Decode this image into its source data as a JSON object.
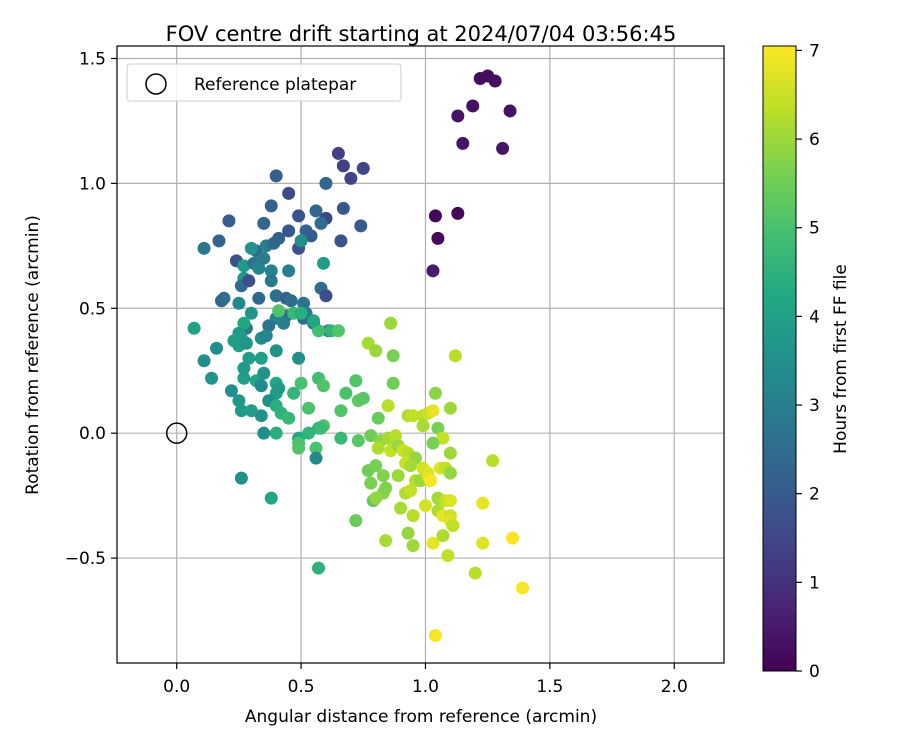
{
  "chart_data": {
    "type": "scatter",
    "title": "FOV centre drift starting at 2024/07/04 03:56:45",
    "xlabel": "Angular distance from reference (arcmin)",
    "ylabel": "Rotation from reference (arcmin)",
    "xlim": [
      -0.24,
      2.2
    ],
    "ylim": [
      -0.92,
      1.55
    ],
    "xticks": [
      0.0,
      0.5,
      1.0,
      1.5,
      2.0
    ],
    "xtick_labels": [
      "0.0",
      "0.5",
      "1.0",
      "1.5",
      "2.0"
    ],
    "yticks": [
      -0.5,
      0.0,
      0.5,
      1.0,
      1.5
    ],
    "ytick_labels": [
      "−0.5",
      "0.0",
      "0.5",
      "1.0",
      "1.5"
    ],
    "grid": true,
    "legend": {
      "location": "upper-left",
      "entries": [
        "Reference platepar"
      ]
    },
    "reference_point": {
      "x": 0.0,
      "y": 0.0
    },
    "colorbar": {
      "label": "Hours from first FF file",
      "range": [
        0,
        7.05
      ],
      "ticks": [
        0,
        1,
        2,
        3,
        4,
        5,
        6,
        7
      ],
      "tick_labels": [
        "0",
        "1",
        "2",
        "3",
        "4",
        "5",
        "6",
        "7"
      ],
      "colormap": "viridis"
    },
    "points": [
      {
        "x": 1.22,
        "y": 1.42,
        "h": 0.2
      },
      {
        "x": 1.25,
        "y": 1.43,
        "h": 0.25
      },
      {
        "x": 1.28,
        "y": 1.41,
        "h": 0.3
      },
      {
        "x": 1.19,
        "y": 1.31,
        "h": 0.3
      },
      {
        "x": 1.13,
        "y": 1.27,
        "h": 0.35
      },
      {
        "x": 1.34,
        "y": 1.29,
        "h": 0.35
      },
      {
        "x": 1.15,
        "y": 1.16,
        "h": 0.4
      },
      {
        "x": 1.31,
        "y": 1.14,
        "h": 0.4
      },
      {
        "x": 1.04,
        "y": 0.87,
        "h": 0.1
      },
      {
        "x": 1.13,
        "y": 0.88,
        "h": 0.1
      },
      {
        "x": 1.05,
        "y": 0.78,
        "h": 0.15
      },
      {
        "x": 1.03,
        "y": 0.65,
        "h": 0.5
      },
      {
        "x": 0.65,
        "y": 1.12,
        "h": 1.3
      },
      {
        "x": 0.67,
        "y": 1.07,
        "h": 1.35
      },
      {
        "x": 0.7,
        "y": 1.02,
        "h": 1.4
      },
      {
        "x": 0.75,
        "y": 1.06,
        "h": 1.45
      },
      {
        "x": 0.6,
        "y": 1.0,
        "h": 2.3
      },
      {
        "x": 0.4,
        "y": 1.03,
        "h": 2.1
      },
      {
        "x": 0.45,
        "y": 0.96,
        "h": 1.6
      },
      {
        "x": 0.38,
        "y": 0.91,
        "h": 2.2
      },
      {
        "x": 0.49,
        "y": 0.87,
        "h": 1.8
      },
      {
        "x": 0.56,
        "y": 0.89,
        "h": 2.4
      },
      {
        "x": 0.6,
        "y": 0.86,
        "h": 1.5
      },
      {
        "x": 0.67,
        "y": 0.9,
        "h": 1.9
      },
      {
        "x": 0.74,
        "y": 0.83,
        "h": 2.0
      },
      {
        "x": 0.66,
        "y": 0.77,
        "h": 1.8
      },
      {
        "x": 0.58,
        "y": 0.84,
        "h": 2.5
      },
      {
        "x": 0.21,
        "y": 0.85,
        "h": 2.1
      },
      {
        "x": 0.17,
        "y": 0.77,
        "h": 2.2
      },
      {
        "x": 0.11,
        "y": 0.74,
        "h": 2.8
      },
      {
        "x": 0.24,
        "y": 0.69,
        "h": 1.8
      },
      {
        "x": 0.35,
        "y": 0.84,
        "h": 2.3
      },
      {
        "x": 0.32,
        "y": 0.73,
        "h": 2.6
      },
      {
        "x": 0.36,
        "y": 0.75,
        "h": 3.0
      },
      {
        "x": 0.39,
        "y": 0.76,
        "h": 2.4
      },
      {
        "x": 0.41,
        "y": 0.78,
        "h": 2.2
      },
      {
        "x": 0.45,
        "y": 0.81,
        "h": 1.9
      },
      {
        "x": 0.52,
        "y": 0.81,
        "h": 2.2
      },
      {
        "x": 0.54,
        "y": 0.79,
        "h": 2.0
      },
      {
        "x": 0.49,
        "y": 0.74,
        "h": 1.7
      },
      {
        "x": 0.5,
        "y": 0.77,
        "h": 3.5
      },
      {
        "x": 0.3,
        "y": 0.74,
        "h": 3.6
      },
      {
        "x": 0.27,
        "y": 0.67,
        "h": 3.8
      },
      {
        "x": 0.27,
        "y": 0.62,
        "h": 3.7
      },
      {
        "x": 0.26,
        "y": 0.59,
        "h": 2.5
      },
      {
        "x": 0.29,
        "y": 0.61,
        "h": 1.7
      },
      {
        "x": 0.31,
        "y": 0.68,
        "h": 2.7
      },
      {
        "x": 0.33,
        "y": 0.66,
        "h": 3.2
      },
      {
        "x": 0.35,
        "y": 0.7,
        "h": 2.9
      },
      {
        "x": 0.38,
        "y": 0.65,
        "h": 3.1
      },
      {
        "x": 0.45,
        "y": 0.65,
        "h": 3.0
      },
      {
        "x": 0.38,
        "y": 0.61,
        "h": 2.8
      },
      {
        "x": 0.33,
        "y": 0.54,
        "h": 2.4
      },
      {
        "x": 0.18,
        "y": 0.53,
        "h": 2.3
      },
      {
        "x": 0.19,
        "y": 0.54,
        "h": 2.5
      },
      {
        "x": 0.25,
        "y": 0.52,
        "h": 3.3
      },
      {
        "x": 0.4,
        "y": 0.55,
        "h": 2.6
      },
      {
        "x": 0.44,
        "y": 0.54,
        "h": 2.2
      },
      {
        "x": 0.46,
        "y": 0.53,
        "h": 2.6
      },
      {
        "x": 0.51,
        "y": 0.52,
        "h": 2.7
      },
      {
        "x": 0.52,
        "y": 0.48,
        "h": 2.9
      },
      {
        "x": 0.58,
        "y": 0.58,
        "h": 2.5
      },
      {
        "x": 0.6,
        "y": 0.55,
        "h": 1.7
      },
      {
        "x": 0.59,
        "y": 0.68,
        "h": 3.9
      },
      {
        "x": 0.51,
        "y": 0.46,
        "h": 2.6
      },
      {
        "x": 0.55,
        "y": 0.44,
        "h": 2.8
      },
      {
        "x": 0.44,
        "y": 0.47,
        "h": 2.5
      },
      {
        "x": 0.43,
        "y": 0.44,
        "h": 3.0
      },
      {
        "x": 0.4,
        "y": 0.46,
        "h": 3.2
      },
      {
        "x": 0.37,
        "y": 0.43,
        "h": 2.7
      },
      {
        "x": 0.28,
        "y": 0.42,
        "h": 2.8
      },
      {
        "x": 0.3,
        "y": 0.48,
        "h": 3.6
      },
      {
        "x": 0.34,
        "y": 0.38,
        "h": 3.4
      },
      {
        "x": 0.36,
        "y": 0.39,
        "h": 3.2
      },
      {
        "x": 0.4,
        "y": 0.33,
        "h": 3.6
      },
      {
        "x": 0.49,
        "y": 0.3,
        "h": 3.5
      },
      {
        "x": 0.61,
        "y": 0.41,
        "h": 2.8
      },
      {
        "x": 0.62,
        "y": 0.41,
        "h": 4.6
      },
      {
        "x": 0.65,
        "y": 0.41,
        "h": 5.1
      },
      {
        "x": 0.57,
        "y": 0.41,
        "h": 4.9
      },
      {
        "x": 0.41,
        "y": 0.49,
        "h": 5.1
      },
      {
        "x": 0.47,
        "y": 0.48,
        "h": 4.7
      },
      {
        "x": 0.5,
        "y": 0.48,
        "h": 4.4
      },
      {
        "x": 0.55,
        "y": 0.45,
        "h": 4.2
      },
      {
        "x": 0.07,
        "y": 0.42,
        "h": 4.0
      },
      {
        "x": 0.27,
        "y": 0.44,
        "h": 4.2
      },
      {
        "x": 0.26,
        "y": 0.38,
        "h": 4.1
      },
      {
        "x": 0.25,
        "y": 0.4,
        "h": 3.8
      },
      {
        "x": 0.23,
        "y": 0.37,
        "h": 4.0
      },
      {
        "x": 0.25,
        "y": 0.35,
        "h": 3.9
      },
      {
        "x": 0.28,
        "y": 0.36,
        "h": 3.7
      },
      {
        "x": 0.16,
        "y": 0.34,
        "h": 3.5
      },
      {
        "x": 0.11,
        "y": 0.29,
        "h": 3.4
      },
      {
        "x": 0.29,
        "y": 0.3,
        "h": 3.9
      },
      {
        "x": 0.34,
        "y": 0.3,
        "h": 4.0
      },
      {
        "x": 0.14,
        "y": 0.22,
        "h": 3.6
      },
      {
        "x": 0.27,
        "y": 0.26,
        "h": 3.8
      },
      {
        "x": 0.27,
        "y": 0.22,
        "h": 3.9
      },
      {
        "x": 0.32,
        "y": 0.21,
        "h": 4.1
      },
      {
        "x": 0.35,
        "y": 0.24,
        "h": 3.6
      },
      {
        "x": 0.34,
        "y": 0.19,
        "h": 3.3
      },
      {
        "x": 0.22,
        "y": 0.17,
        "h": 3.5
      },
      {
        "x": 0.4,
        "y": 0.2,
        "h": 4.2
      },
      {
        "x": 0.4,
        "y": 0.16,
        "h": 4.0
      },
      {
        "x": 0.41,
        "y": 0.18,
        "h": 3.8
      },
      {
        "x": 0.47,
        "y": 0.16,
        "h": 4.6
      },
      {
        "x": 0.5,
        "y": 0.2,
        "h": 5.0
      },
      {
        "x": 0.57,
        "y": 0.22,
        "h": 4.9
      },
      {
        "x": 0.59,
        "y": 0.19,
        "h": 5.1
      },
      {
        "x": 0.25,
        "y": 0.13,
        "h": 3.7
      },
      {
        "x": 0.37,
        "y": 0.13,
        "h": 3.5
      },
      {
        "x": 0.4,
        "y": 0.11,
        "h": 4.4
      },
      {
        "x": 0.42,
        "y": 0.08,
        "h": 4.5
      },
      {
        "x": 0.45,
        "y": 0.06,
        "h": 4.7
      },
      {
        "x": 0.53,
        "y": 0.1,
        "h": 5.0
      },
      {
        "x": 0.26,
        "y": 0.09,
        "h": 3.8
      },
      {
        "x": 0.3,
        "y": 0.09,
        "h": 3.9
      },
      {
        "x": 0.34,
        "y": 0.07,
        "h": 3.6
      },
      {
        "x": 0.49,
        "y": -0.02,
        "h": 4.2
      },
      {
        "x": 0.53,
        "y": 0.0,
        "h": 4.6
      },
      {
        "x": 0.4,
        "y": 0.0,
        "h": 4.4
      },
      {
        "x": 0.35,
        "y": 0.0,
        "h": 3.5
      },
      {
        "x": 0.49,
        "y": -0.04,
        "h": 5.0
      },
      {
        "x": 0.49,
        "y": -0.06,
        "h": 5.1
      },
      {
        "x": 0.56,
        "y": -0.06,
        "h": 5.0
      },
      {
        "x": 0.56,
        "y": -0.1,
        "h": 3.3
      },
      {
        "x": 0.57,
        "y": 0.02,
        "h": 4.6
      },
      {
        "x": 0.59,
        "y": 0.03,
        "h": 5.1
      },
      {
        "x": 0.58,
        "y": 0.02,
        "h": 4.8
      },
      {
        "x": 0.66,
        "y": -0.02,
        "h": 4.7
      },
      {
        "x": 0.26,
        "y": -0.18,
        "h": 3.5
      },
      {
        "x": 0.38,
        "y": -0.26,
        "h": 4.1
      },
      {
        "x": 0.57,
        "y": -0.54,
        "h": 4.5
      },
      {
        "x": 0.66,
        "y": 0.09,
        "h": 5.1
      },
      {
        "x": 0.68,
        "y": 0.16,
        "h": 5.0
      },
      {
        "x": 0.72,
        "y": 0.21,
        "h": 5.1
      },
      {
        "x": 0.73,
        "y": 0.13,
        "h": 5.3
      },
      {
        "x": 0.75,
        "y": 0.14,
        "h": 5.2
      },
      {
        "x": 0.77,
        "y": 0.36,
        "h": 6.1
      },
      {
        "x": 0.8,
        "y": 0.33,
        "h": 6.0
      },
      {
        "x": 0.86,
        "y": 0.44,
        "h": 6.0
      },
      {
        "x": 0.87,
        "y": 0.31,
        "h": 5.6
      },
      {
        "x": 0.87,
        "y": 0.2,
        "h": 5.5
      },
      {
        "x": 0.81,
        "y": 0.06,
        "h": 5.4
      },
      {
        "x": 0.85,
        "y": 0.11,
        "h": 6.3
      },
      {
        "x": 0.93,
        "y": 0.07,
        "h": 6.2
      },
      {
        "x": 0.95,
        "y": 0.07,
        "h": 6.4
      },
      {
        "x": 0.99,
        "y": 0.07,
        "h": 6.3
      },
      {
        "x": 1.01,
        "y": 0.08,
        "h": 6.5
      },
      {
        "x": 1.03,
        "y": 0.09,
        "h": 6.8
      },
      {
        "x": 1.04,
        "y": 0.16,
        "h": 5.8
      },
      {
        "x": 1.1,
        "y": 0.1,
        "h": 6.0
      },
      {
        "x": 1.12,
        "y": 0.31,
        "h": 6.3
      },
      {
        "x": 0.99,
        "y": 0.03,
        "h": 6.1
      },
      {
        "x": 1.05,
        "y": 0.02,
        "h": 5.6
      },
      {
        "x": 1.07,
        "y": -0.02,
        "h": 6.4
      },
      {
        "x": 0.73,
        "y": -0.03,
        "h": 5.2
      },
      {
        "x": 0.78,
        "y": -0.01,
        "h": 5.5
      },
      {
        "x": 0.82,
        "y": -0.03,
        "h": 5.8
      },
      {
        "x": 0.85,
        "y": -0.02,
        "h": 6.1
      },
      {
        "x": 0.88,
        "y": -0.01,
        "h": 6.3
      },
      {
        "x": 0.81,
        "y": -0.06,
        "h": 6.2
      },
      {
        "x": 0.86,
        "y": -0.07,
        "h": 6.4
      },
      {
        "x": 0.89,
        "y": -0.05,
        "h": 6.0
      },
      {
        "x": 0.91,
        "y": -0.07,
        "h": 6.5
      },
      {
        "x": 0.93,
        "y": -0.08,
        "h": 6.3
      },
      {
        "x": 0.96,
        "y": -0.1,
        "h": 5.9
      },
      {
        "x": 1.03,
        "y": -0.04,
        "h": 5.6
      },
      {
        "x": 1.1,
        "y": -0.08,
        "h": 6.0
      },
      {
        "x": 1.27,
        "y": -0.11,
        "h": 6.3
      },
      {
        "x": 0.92,
        "y": -0.12,
        "h": 6.5
      },
      {
        "x": 0.94,
        "y": -0.13,
        "h": 6.1
      },
      {
        "x": 0.99,
        "y": -0.14,
        "h": 6.6
      },
      {
        "x": 1.01,
        "y": -0.16,
        "h": 6.7
      },
      {
        "x": 1.06,
        "y": -0.14,
        "h": 6.7
      },
      {
        "x": 1.08,
        "y": -0.14,
        "h": 6.4
      },
      {
        "x": 1.1,
        "y": -0.16,
        "h": 5.9
      },
      {
        "x": 0.77,
        "y": -0.15,
        "h": 5.5
      },
      {
        "x": 0.8,
        "y": -0.13,
        "h": 5.6
      },
      {
        "x": 0.83,
        "y": -0.17,
        "h": 5.7
      },
      {
        "x": 0.78,
        "y": -0.2,
        "h": 5.6
      },
      {
        "x": 0.79,
        "y": -0.27,
        "h": 5.3
      },
      {
        "x": 0.83,
        "y": -0.24,
        "h": 5.8
      },
      {
        "x": 0.89,
        "y": -0.17,
        "h": 6.0
      },
      {
        "x": 0.92,
        "y": -0.24,
        "h": 6.2
      },
      {
        "x": 0.94,
        "y": -0.23,
        "h": 6.4
      },
      {
        "x": 0.96,
        "y": -0.19,
        "h": 6.3
      },
      {
        "x": 0.98,
        "y": -0.19,
        "h": 6.0
      },
      {
        "x": 1.01,
        "y": -0.17,
        "h": 6.7
      },
      {
        "x": 1.02,
        "y": -0.19,
        "h": 7.0
      },
      {
        "x": 1.05,
        "y": -0.26,
        "h": 6.1
      },
      {
        "x": 1.08,
        "y": -0.27,
        "h": 6.4
      },
      {
        "x": 1.1,
        "y": -0.27,
        "h": 6.7
      },
      {
        "x": 1.23,
        "y": -0.28,
        "h": 6.8
      },
      {
        "x": 0.8,
        "y": -0.26,
        "h": 5.9
      },
      {
        "x": 0.84,
        "y": -0.22,
        "h": 5.7
      },
      {
        "x": 0.9,
        "y": -0.3,
        "h": 6.1
      },
      {
        "x": 0.95,
        "y": -0.33,
        "h": 6.3
      },
      {
        "x": 1.0,
        "y": -0.29,
        "h": 6.6
      },
      {
        "x": 1.05,
        "y": -0.31,
        "h": 6.2
      },
      {
        "x": 1.07,
        "y": -0.33,
        "h": 6.8
      },
      {
        "x": 1.1,
        "y": -0.33,
        "h": 6.5
      },
      {
        "x": 1.1,
        "y": -0.35,
        "h": 6.7
      },
      {
        "x": 1.11,
        "y": -0.37,
        "h": 6.4
      },
      {
        "x": 0.72,
        "y": -0.35,
        "h": 5.4
      },
      {
        "x": 0.93,
        "y": -0.4,
        "h": 5.9
      },
      {
        "x": 0.95,
        "y": -0.45,
        "h": 6.0
      },
      {
        "x": 0.84,
        "y": -0.43,
        "h": 6.1
      },
      {
        "x": 1.03,
        "y": -0.44,
        "h": 6.8
      },
      {
        "x": 1.07,
        "y": -0.41,
        "h": 6.2
      },
      {
        "x": 1.09,
        "y": -0.49,
        "h": 6.4
      },
      {
        "x": 1.2,
        "y": -0.56,
        "h": 6.3
      },
      {
        "x": 1.23,
        "y": -0.44,
        "h": 6.7
      },
      {
        "x": 1.35,
        "y": -0.42,
        "h": 7.0
      },
      {
        "x": 1.39,
        "y": -0.62,
        "h": 7.0
      },
      {
        "x": 1.04,
        "y": -0.81,
        "h": 7.0
      }
    ]
  }
}
